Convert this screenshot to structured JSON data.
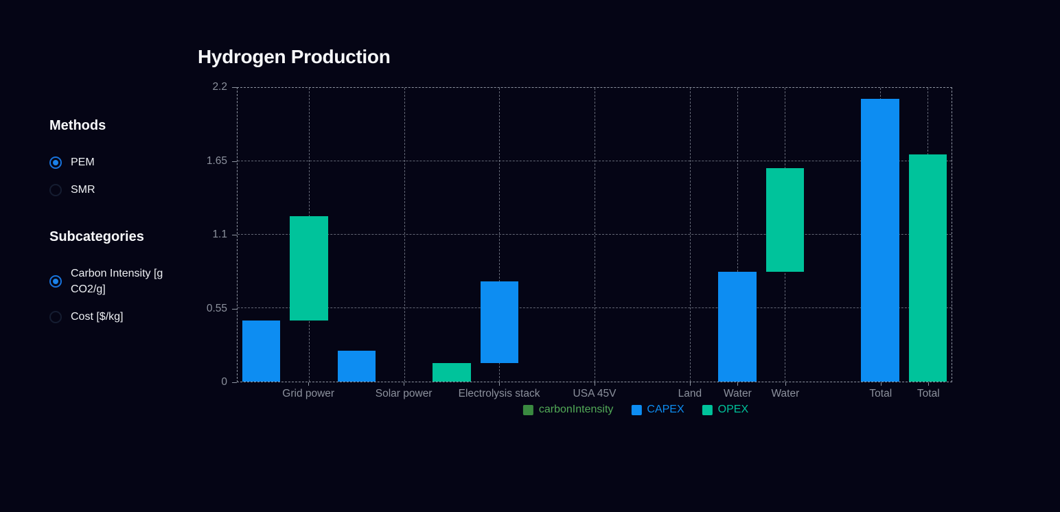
{
  "title": "Hydrogen Production",
  "sidebar": {
    "groups": [
      {
        "title": "Methods",
        "options": [
          {
            "label": "PEM",
            "selected": true
          },
          {
            "label": "SMR",
            "selected": false
          }
        ]
      },
      {
        "title": "Subcategories",
        "options": [
          {
            "label": "Carbon Intensity [g CO2/g]",
            "selected": true
          },
          {
            "label": "Cost [$/kg]",
            "selected": false
          }
        ]
      }
    ]
  },
  "colors": {
    "background": "#050515",
    "capex_blue": "#0d8df2",
    "opex_teal": "#00c39b",
    "carbon_green": "#3a8a40",
    "carbon_green_text": "#52aa57",
    "radio_blue": "#1b82ea",
    "axis_text": "#8c919d",
    "grid": "#b2bac6"
  },
  "chart_data": {
    "type": "bar",
    "title": "Hydrogen Production",
    "ylim": [
      0,
      2.2
    ],
    "yticks": [
      {
        "value": 0,
        "label": "0"
      },
      {
        "value": 0.55,
        "label": "0.55"
      },
      {
        "value": 1.1,
        "label": "1.1"
      },
      {
        "value": 1.65,
        "label": "1.65"
      },
      {
        "value": 2.2,
        "label": "2.2"
      }
    ],
    "xlim": [
      0.25,
      7.75
    ],
    "xticks": [
      {
        "x": 1,
        "label": "Grid power"
      },
      {
        "x": 2,
        "label": "Solar power"
      },
      {
        "x": 3,
        "label": "Electrolysis stack"
      },
      {
        "x": 4,
        "label": "USA 45V"
      },
      {
        "x": 5,
        "label": "Land"
      },
      {
        "x": 5.5,
        "label": "Water"
      },
      {
        "x": 6,
        "label": "Water"
      },
      {
        "x": 7,
        "label": "Total"
      },
      {
        "x": 7.5,
        "label": "Total"
      }
    ],
    "bar_width": 0.4,
    "grid": true,
    "legend_position": "bottom",
    "series": [
      {
        "name": "carbonIntensity",
        "color": "#3a8a40",
        "text_color": "#52aa57"
      },
      {
        "name": "CAPEX",
        "color": "#0d8df2",
        "text_color": "#0d8df2"
      },
      {
        "name": "OPEX",
        "color": "#00c39b",
        "text_color": "#00c39b"
      }
    ],
    "bars": [
      {
        "x": 0.5,
        "series": "CAPEX",
        "category": "Grid power",
        "from": 0,
        "to": 0.46
      },
      {
        "x": 1.0,
        "series": "OPEX",
        "category": "Grid power",
        "from": 0.46,
        "to": 1.24
      },
      {
        "x": 1.5,
        "series": "CAPEX",
        "category": "Solar power",
        "from": 0,
        "to": 0.23
      },
      {
        "x": 2.5,
        "series": "OPEX",
        "category": "Electrolysis stack",
        "from": 0,
        "to": 0.14
      },
      {
        "x": 3.0,
        "series": "CAPEX",
        "category": "Electrolysis stack",
        "from": 0.14,
        "to": 0.75
      },
      {
        "x": 5.5,
        "series": "CAPEX",
        "category": "Water",
        "from": 0,
        "to": 0.82
      },
      {
        "x": 6.0,
        "series": "OPEX",
        "category": "Water",
        "from": 0.82,
        "to": 1.6
      },
      {
        "x": 7.0,
        "series": "CAPEX",
        "category": "Total",
        "from": 0,
        "to": 2.12
      },
      {
        "x": 7.5,
        "series": "OPEX",
        "category": "Total",
        "from": 0,
        "to": 1.7
      }
    ]
  }
}
